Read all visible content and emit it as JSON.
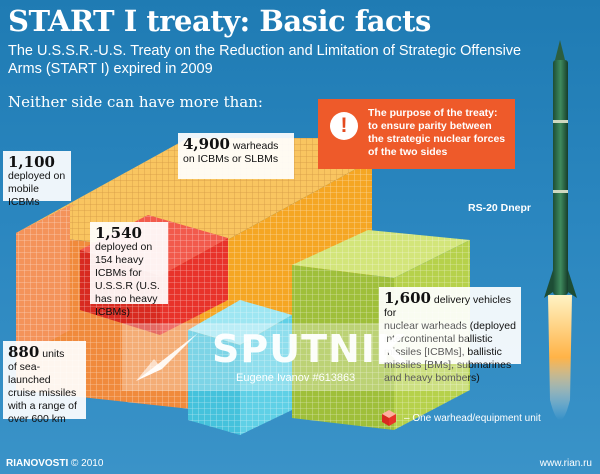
{
  "title": "START I treaty: Basic facts",
  "subtitle": "The U.S.S.R.-U.S. Treaty on the Reduction and Limitation of Strategic Offensive Arms (START I) expired in 2009",
  "intro": "Neither side can have more than:",
  "purpose": {
    "icon": "exclamation-icon",
    "icon_glyph": "!",
    "text": "The purpose of the treaty: to ensure parity between the strategic nuclear forces of the two sides"
  },
  "rocket_label": "RS-20 Dnepr",
  "facts": {
    "mobile": {
      "number": "1,100",
      "text": "deployed on mobile ICBMs"
    },
    "warheads": {
      "number": "4,900",
      "text_inline": "warheads",
      "text": "on ICBMs or SLBMs"
    },
    "heavy": {
      "number": "1,540",
      "text": "deployed on 154 heavy ICBMs for U.S.S.R (U.S. has no heavy ICBMs)"
    },
    "delivery": {
      "number": "1,600",
      "text_inline": "delivery vehicles for",
      "text": "nuclear warheads (deployed intercontinental ballistic missiles [ICBMs], ballistic missiles [BMs], submarines and heavy bombers)"
    },
    "cruise": {
      "number": "880",
      "text_inline": "units",
      "text": "of sea-launched cruise missiles with a range of over 600 km"
    }
  },
  "legend": "– One warhead/equipment unit",
  "footer": {
    "left_brand": "RIANOVOSTI",
    "left_year": "© 2010",
    "right": "www.rian.ru"
  },
  "watermark": {
    "text": "SPUTNIK",
    "credit": "Eugene Ivanov #613863"
  },
  "colors": {
    "background": "#2a86bf",
    "warheads_block": "#f5a623",
    "mobile_block": "#f08a3c",
    "heavy_block": "#e8332a",
    "delivery_block": "#b6d14b",
    "cruise_block": "#5fd0e6",
    "purpose_box": "#ee5a2a"
  }
}
